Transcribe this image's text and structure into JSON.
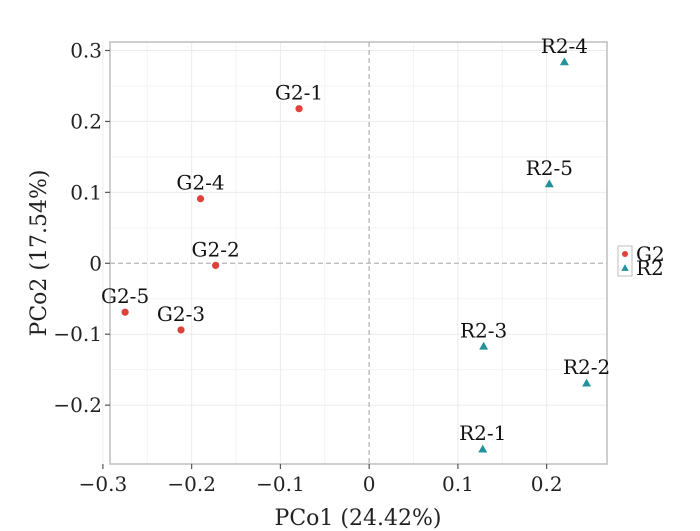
{
  "chart_data": {
    "type": "scatter",
    "xlabel": "PCo1 (24.42%)",
    "ylabel": "PCo2 (17.54%)",
    "xlim": [
      -0.292,
      0.268
    ],
    "ylim": [
      -0.283,
      0.312
    ],
    "x_ticks": [
      -0.3,
      -0.2,
      -0.1,
      0,
      0.1,
      0.2
    ],
    "x_tick_labels": [
      "−0.3",
      "−0.2",
      "−0.1",
      "0",
      "0.1",
      "0.2"
    ],
    "y_ticks": [
      -0.2,
      -0.1,
      0,
      0.1,
      0.2,
      0.3
    ],
    "y_tick_labels": [
      "−0.2",
      "−0.1",
      "0",
      "0.1",
      "0.2",
      "0.3"
    ],
    "grid": true,
    "legend": "right",
    "series": [
      {
        "name": "G2",
        "color": "#e0413a",
        "marker": "circle",
        "points": [
          {
            "label": "G2-1",
            "x": -0.079,
            "y": 0.218
          },
          {
            "label": "G2-4",
            "x": -0.19,
            "y": 0.091
          },
          {
            "label": "G2-2",
            "x": -0.173,
            "y": -0.003
          },
          {
            "label": "G2-5",
            "x": -0.275,
            "y": -0.069
          },
          {
            "label": "G2-3",
            "x": -0.212,
            "y": -0.094
          }
        ]
      },
      {
        "name": "R2",
        "color": "#25919b",
        "marker": "triangle",
        "points": [
          {
            "label": "R2-4",
            "x": 0.22,
            "y": 0.284
          },
          {
            "label": "R2-5",
            "x": 0.203,
            "y": 0.112
          },
          {
            "label": "R2-3",
            "x": 0.129,
            "y": -0.117
          },
          {
            "label": "R2-2",
            "x": 0.245,
            "y": -0.169
          },
          {
            "label": "R2-1",
            "x": 0.128,
            "y": -0.262
          }
        ]
      }
    ]
  }
}
